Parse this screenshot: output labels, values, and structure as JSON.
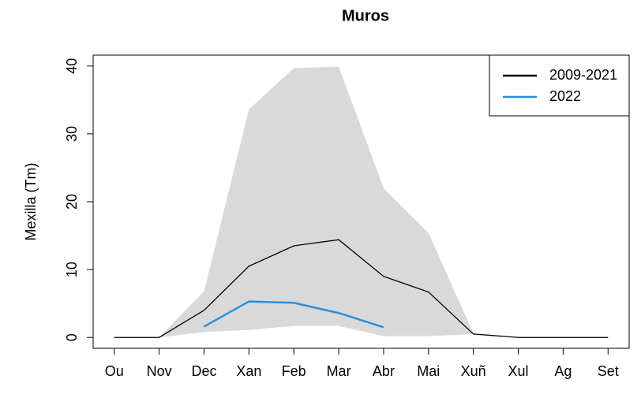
{
  "chart_data": {
    "type": "line",
    "title": "Muros",
    "y_label": "Mexilla (Tm)",
    "categories": [
      "Ou",
      "Nov",
      "Dec",
      "Xan",
      "Feb",
      "Mar",
      "Abr",
      "Mai",
      "Xuñ",
      "Xul",
      "Ag",
      "Set"
    ],
    "band": {
      "color": "#d9d9d9",
      "upper": [
        0,
        0,
        6.8,
        33.6,
        39.7,
        39.9,
        22,
        15.4,
        0.6,
        0,
        0,
        0
      ],
      "lower": [
        0,
        0,
        0.8,
        1.1,
        1.7,
        1.7,
        0.2,
        0.2,
        0.5,
        0,
        0,
        0
      ]
    },
    "series": [
      {
        "name": "2009-2021",
        "color": "#000000",
        "width": 1.3,
        "values": [
          0,
          0,
          4,
          10.5,
          13.5,
          14.4,
          9,
          6.7,
          0.5,
          0,
          0,
          0
        ]
      },
      {
        "name": "2022",
        "color": "#2b8fdd",
        "width": 2.5,
        "values": [
          null,
          null,
          1.6,
          5.3,
          5.1,
          3.6,
          1.5,
          null,
          null,
          null,
          null,
          null
        ]
      }
    ],
    "ylim": [
      -1.6,
      41.6
    ],
    "yticks": [
      0,
      10,
      20,
      30,
      40
    ],
    "legend": "top-right"
  }
}
